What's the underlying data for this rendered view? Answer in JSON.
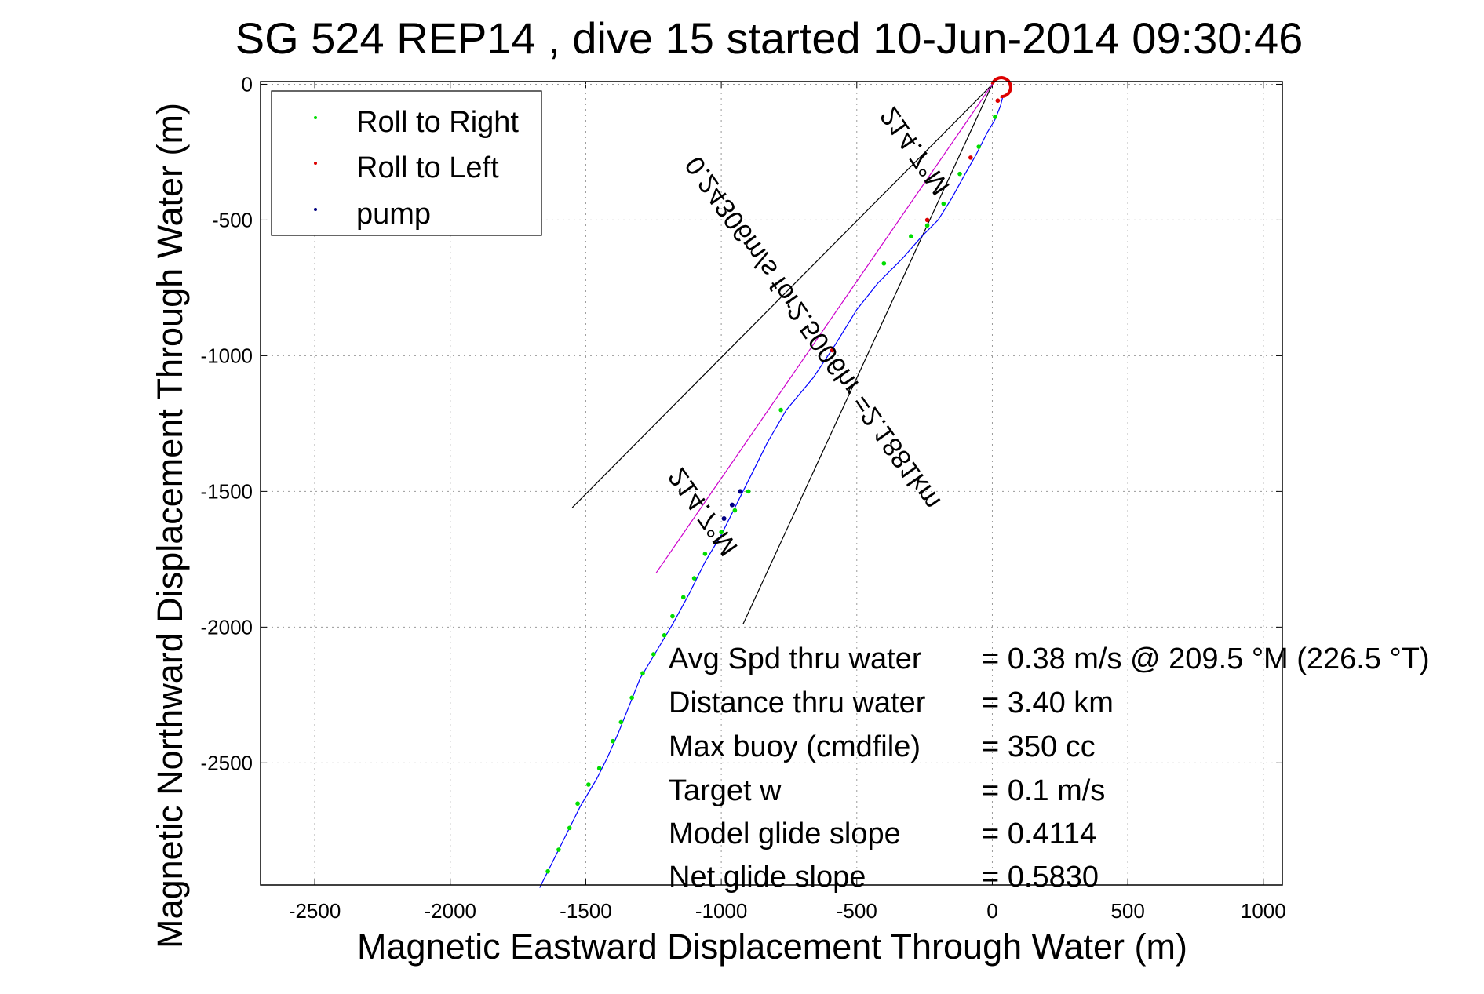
{
  "chart_data": {
    "type": "line",
    "title": "SG 524   REP14  , dive 15 started 10-Jun-2014 09:30:46",
    "xlabel": "Magnetic Eastward Displacement Through Water (m)",
    "ylabel": "Magnetic Northward Displacement Through Water (m)",
    "xlim": [
      -2700,
      1070
    ],
    "ylim": [
      -2950,
      10
    ],
    "xticks": [
      -2500,
      -2000,
      -1500,
      -1000,
      -500,
      0,
      500,
      1000
    ],
    "yticks": [
      0,
      -500,
      -1000,
      -1500,
      -2000,
      -2500
    ],
    "xtick_labels": [
      "-2500",
      "-2000",
      "-1500",
      "-1000",
      "-500",
      "0",
      "500",
      "1000"
    ],
    "ytick_labels": [
      "0",
      "-500",
      "-1000",
      "-1500",
      "-2000",
      "-2500"
    ],
    "grid": true,
    "legend_position": "top-left",
    "legend": [
      {
        "label": "Roll to Right",
        "color": "#00dd00"
      },
      {
        "label": "Roll to Left",
        "color": "#dd0000"
      },
      {
        "label": "pump",
        "color": "#000080"
      }
    ],
    "colors": {
      "track": "#0000ff",
      "roll_right": "#00dd00",
      "roll_left": "#dd0000",
      "pump": "#000080",
      "heading_line": "#cc00cc",
      "cone": "#000000"
    },
    "series": [
      {
        "name": "track",
        "x": [
          40,
          30,
          10,
          -20,
          -60,
          -100,
          -150,
          -200,
          -260,
          -330,
          -420,
          -500,
          -580,
          -660,
          -760,
          -830,
          -880,
          -920,
          -960,
          -1000,
          -1060,
          -1120,
          -1180,
          -1240,
          -1300,
          -1340,
          -1380,
          -1420,
          -1460,
          -1520,
          -1560,
          -1600,
          -1640,
          -1670
        ],
        "y": [
          -40,
          -80,
          -130,
          -180,
          -260,
          -330,
          -420,
          -500,
          -560,
          -640,
          -730,
          -830,
          -960,
          -1080,
          -1200,
          -1320,
          -1420,
          -1500,
          -1580,
          -1660,
          -1760,
          -1880,
          -1990,
          -2090,
          -2190,
          -2290,
          -2390,
          -2480,
          -2560,
          -2660,
          -2740,
          -2820,
          -2900,
          -2960
        ]
      }
    ],
    "roll_right_points": {
      "x": [
        10,
        -50,
        -120,
        -180,
        -240,
        -300,
        -400,
        -780,
        -900,
        -950,
        -1000,
        -1060,
        -1100,
        -1140,
        -1180,
        -1210,
        -1250,
        -1290,
        -1330,
        -1370,
        -1400,
        -1450,
        -1490,
        -1530,
        -1560,
        -1600,
        -1640
      ],
      "y": [
        -120,
        -230,
        -330,
        -440,
        -520,
        -560,
        -660,
        -1200,
        -1500,
        -1570,
        -1650,
        -1730,
        -1820,
        -1890,
        -1960,
        -2030,
        -2100,
        -2170,
        -2260,
        -2350,
        -2420,
        -2520,
        -2580,
        -2650,
        -2740,
        -2820,
        -2900
      ]
    },
    "roll_left_points": {
      "x": [
        20,
        -80,
        -240,
        -590
      ],
      "y": [
        -60,
        -270,
        -500,
        -980
      ]
    },
    "pump_points": {
      "x": [
        -930,
        -960,
        -990
      ],
      "y": [
        -1500,
        -1550,
        -1600
      ]
    },
    "heading_line": {
      "x": [
        0,
        -1240
      ],
      "y": [
        0,
        -1800
      ]
    },
    "cone_lines": [
      {
        "x": [
          0,
          -1550
        ],
        "y": [
          0,
          -1560
        ]
      },
      {
        "x": [
          0,
          -920
        ],
        "y": [
          0,
          -1990
        ]
      }
    ],
    "annotations": {
      "vector_label": "0.24306m/s for2.5006hr =2.1881km",
      "heading_label_1": "214.7°M",
      "heading_label_2": "214.7°M"
    },
    "stats": [
      {
        "label": "Avg Spd thru water",
        "value": "=  0.38 m/s @ 209.5 °M (226.5 °T)"
      },
      {
        "label": "Distance thru water",
        "value": "=  3.40 km"
      },
      {
        "label": "Max buoy (cmdfile)",
        "value": "= 350 cc"
      },
      {
        "label": "Target w",
        "value": "= 0.1 m/s"
      },
      {
        "label": "Model glide slope",
        "value": "= 0.4114"
      },
      {
        "label": "Net glide slope",
        "value": "= 0.5830"
      }
    ]
  }
}
